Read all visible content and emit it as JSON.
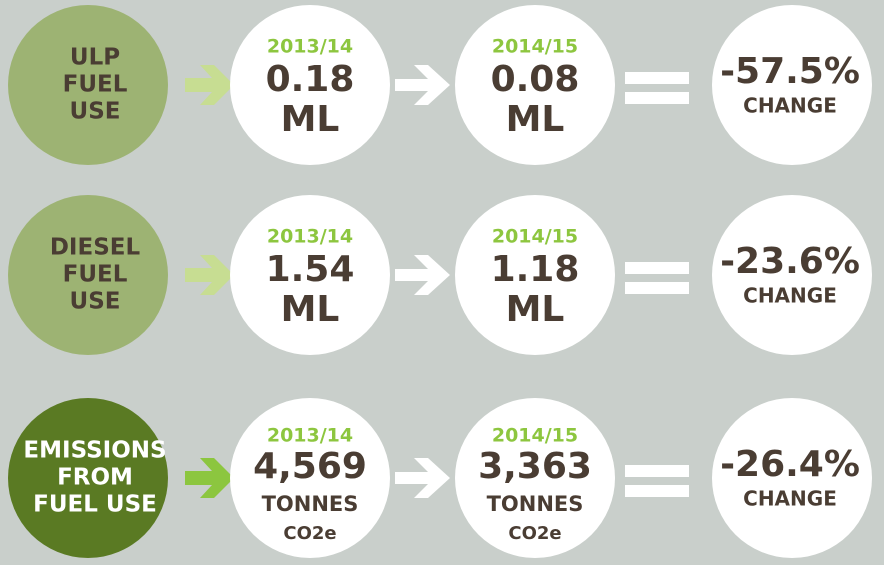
{
  "rows": [
    {
      "label": [
        "ULP",
        "FUEL",
        "USE"
      ],
      "year_1": "2013/14",
      "value_1": "0.18",
      "unit_1": [
        "ML"
      ],
      "year_2": "2014/15",
      "value_2": "0.08",
      "unit_2": [
        "ML"
      ],
      "change": "-57.5%",
      "change_label": "CHANGE"
    },
    {
      "label": [
        "DIESEL",
        "FUEL",
        "USE"
      ],
      "year_1": "2013/14",
      "value_1": "1.54",
      "unit_1": [
        "ML"
      ],
      "year_2": "2014/15",
      "value_2": "1.18",
      "unit_2": [
        "ML"
      ],
      "change": "-23.6%",
      "change_label": "CHANGE"
    },
    {
      "label": [
        "EMISSIONS",
        "FROM",
        "FUEL USE"
      ],
      "year_1": "2013/14",
      "value_1": "4,569",
      "unit_1": [
        "TONNES",
        "CO2e"
      ],
      "year_2": "2014/15",
      "value_2": "3,363",
      "unit_2": [
        "TONNES",
        "CO2e"
      ],
      "change": "-26.4%",
      "change_label": "CHANGE"
    }
  ]
}
